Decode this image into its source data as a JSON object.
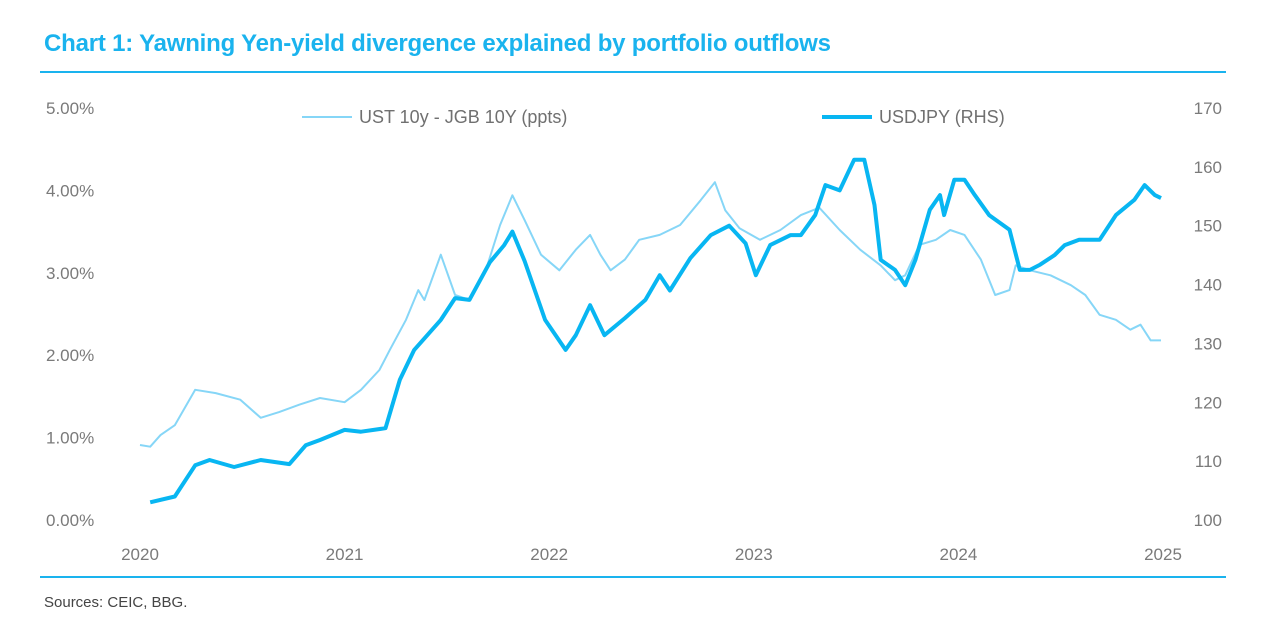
{
  "title": "Chart 1: Yawning Yen-yield divergence explained by portfolio outflows",
  "source": "Sources: CEIC, BBG.",
  "colors": {
    "accent": "#1ab3ee",
    "spread": "#86d6f7",
    "usdjpy": "#08b6f2"
  },
  "chart_data": {
    "type": "line",
    "title": "Chart 1: Yawning Yen-yield divergence explained by portfolio outflows",
    "xlabel": "",
    "ylabel": "",
    "y2label": "",
    "xlim": [
      2020,
      2025
    ],
    "ylim": [
      0,
      5
    ],
    "y2lim": [
      100,
      170
    ],
    "x_ticks": [
      "2020",
      "2021",
      "2022",
      "2023",
      "2024",
      "2025"
    ],
    "y_ticks": [
      "0.00%",
      "1.00%",
      "2.00%",
      "3.00%",
      "4.00%",
      "5.00%"
    ],
    "y2_ticks": [
      "100",
      "110",
      "120",
      "130",
      "140",
      "150",
      "160",
      "170"
    ],
    "grid": false,
    "legend": "top",
    "series": [
      {
        "name": "UST 10y - JGB 10Y (ppts)",
        "axis": "left",
        "style": "thin",
        "x": [
          2020.0,
          2020.05,
          2020.1,
          2020.17,
          2020.27,
          2020.37,
          2020.49,
          2020.59,
          2020.68,
          2020.78,
          2020.88,
          2021.0,
          2021.08,
          2021.17,
          2021.22,
          2021.3,
          2021.36,
          2021.39,
          2021.47,
          2021.54,
          2021.61,
          2021.69,
          2021.76,
          2021.82,
          2021.88,
          2021.96,
          2022.05,
          2022.13,
          2022.2,
          2022.25,
          2022.3,
          2022.37,
          2022.44,
          2022.54,
          2022.64,
          2022.74,
          2022.81,
          2022.86,
          2022.93,
          2023.03,
          2023.13,
          2023.23,
          2023.32,
          2023.42,
          2023.52,
          2023.62,
          2023.69,
          2023.74,
          2023.81,
          2023.89,
          2023.96,
          2024.03,
          2024.11,
          2024.18,
          2024.25,
          2024.28,
          2024.35,
          2024.45,
          2024.55,
          2024.62,
          2024.69,
          2024.77,
          2024.84,
          2024.89,
          2024.94,
          2024.99
        ],
        "y": [
          0.91,
          0.89,
          1.03,
          1.15,
          1.58,
          1.54,
          1.46,
          1.24,
          1.31,
          1.4,
          1.48,
          1.43,
          1.58,
          1.82,
          2.06,
          2.43,
          2.79,
          2.67,
          3.22,
          2.73,
          2.67,
          3.03,
          3.58,
          3.94,
          3.64,
          3.22,
          3.03,
          3.28,
          3.46,
          3.22,
          3.03,
          3.16,
          3.4,
          3.46,
          3.58,
          3.88,
          4.1,
          3.76,
          3.54,
          3.4,
          3.52,
          3.7,
          3.79,
          3.52,
          3.28,
          3.09,
          2.91,
          2.97,
          3.34,
          3.4,
          3.52,
          3.46,
          3.16,
          2.73,
          2.79,
          3.09,
          3.03,
          2.97,
          2.85,
          2.73,
          2.49,
          2.43,
          2.31,
          2.37,
          2.18,
          2.18
        ]
      },
      {
        "name": "USDJPY (RHS)",
        "axis": "right",
        "style": "thick",
        "x": [
          2020.05,
          2020.17,
          2020.27,
          2020.34,
          2020.46,
          2020.59,
          2020.73,
          2020.81,
          2020.88,
          2021.0,
          2021.08,
          2021.2,
          2021.27,
          2021.34,
          2021.47,
          2021.54,
          2021.61,
          2021.71,
          2021.78,
          2021.82,
          2021.88,
          2021.98,
          2022.08,
          2022.13,
          2022.2,
          2022.27,
          2022.37,
          2022.47,
          2022.54,
          2022.59,
          2022.69,
          2022.79,
          2022.88,
          2022.96,
          2023.01,
          2023.08,
          2023.18,
          2023.23,
          2023.3,
          2023.35,
          2023.42,
          2023.49,
          2023.54,
          2023.59,
          2023.62,
          2023.69,
          2023.74,
          2023.79,
          2023.86,
          2023.91,
          2023.93,
          2023.98,
          2024.03,
          2024.08,
          2024.15,
          2024.25,
          2024.3,
          2024.35,
          2024.4,
          2024.47,
          2024.52,
          2024.59,
          2024.69,
          2024.77,
          2024.86,
          2024.91,
          2024.96,
          2024.99
        ],
        "y": [
          103.0,
          104.0,
          109.3,
          110.2,
          109.0,
          110.2,
          109.5,
          112.7,
          113.6,
          115.3,
          115.0,
          115.6,
          123.8,
          128.9,
          134.0,
          137.7,
          137.4,
          143.8,
          146.7,
          149.0,
          144.0,
          134.0,
          128.9,
          131.4,
          136.5,
          131.4,
          134.3,
          137.4,
          141.6,
          139.0,
          144.5,
          148.4,
          150.0,
          147.0,
          141.6,
          146.7,
          148.4,
          148.4,
          151.8,
          156.9,
          156.0,
          161.2,
          161.2,
          153.5,
          144.2,
          142.5,
          139.9,
          144.2,
          152.7,
          155.2,
          151.8,
          157.8,
          157.8,
          155.2,
          151.8,
          149.3,
          142.5,
          142.5,
          143.4,
          145.0,
          146.7,
          147.6,
          147.6,
          151.8,
          154.4,
          156.9,
          155.2,
          154.7
        ]
      }
    ]
  }
}
